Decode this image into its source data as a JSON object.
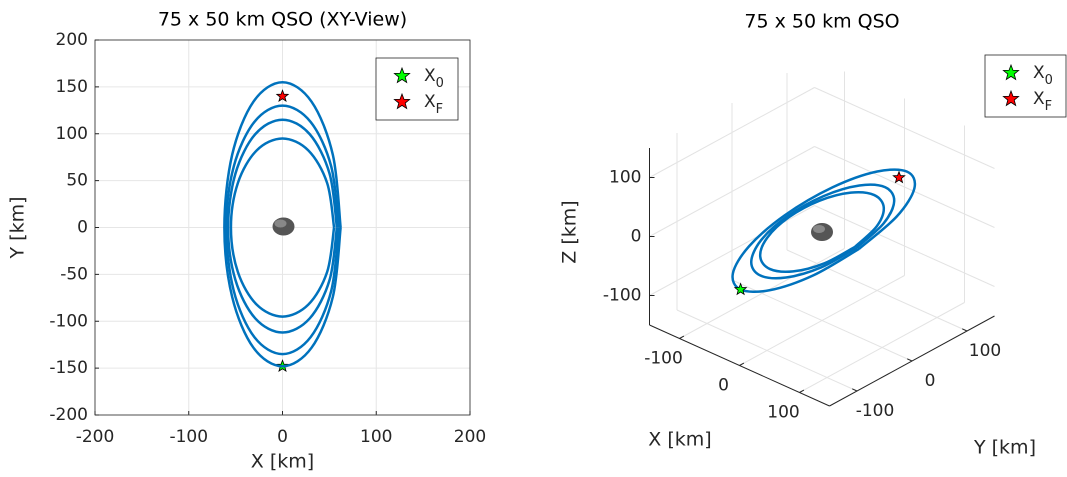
{
  "chart_data": [
    {
      "type": "line",
      "title": "75 x 50 km QSO (XY-View)",
      "xlabel": "X [km]",
      "ylabel": "Y [km]",
      "xlim": [
        -200,
        200
      ],
      "ylim": [
        -200,
        200
      ],
      "xticks": [
        -200,
        -100,
        0,
        100,
        200
      ],
      "yticks": [
        -200,
        -150,
        -100,
        -50,
        0,
        50,
        100,
        150,
        200
      ],
      "grid": true,
      "series": [
        {
          "color": "#0072bd",
          "x": [
            62,
            53.7,
            31,
            0,
            -31,
            -53.7,
            -62,
            -53.7,
            -31,
            0,
            31,
            53.7,
            62
          ],
          "y": [
            0,
            77.5,
            134.2,
            155,
            134.2,
            77.5,
            0,
            -74,
            -128.2,
            -148,
            -128.2,
            -74,
            0
          ]
        },
        {
          "color": "#0072bd",
          "x": [
            60,
            52,
            30,
            0,
            -30,
            -52,
            -60,
            -52,
            -30,
            0,
            30,
            52,
            60
          ],
          "y": [
            0,
            65,
            112.6,
            130,
            112.6,
            65,
            0,
            -67.5,
            -116.9,
            -135,
            -116.9,
            -67.5,
            0
          ]
        },
        {
          "color": "#0072bd",
          "x": [
            58,
            50.2,
            29,
            0,
            -29,
            -50.2,
            -58,
            -50.2,
            -29,
            0,
            29,
            50.2,
            58
          ],
          "y": [
            0,
            57.5,
            99.6,
            115,
            99.6,
            57.5,
            0,
            -56,
            -97,
            -112,
            -97,
            -56,
            0
          ]
        },
        {
          "color": "#0072bd",
          "x": [
            55,
            47.6,
            27.5,
            0,
            -27.5,
            -47.6,
            -55,
            -47.6,
            -27.5,
            0,
            27.5,
            47.6,
            55
          ],
          "y": [
            0,
            47.5,
            82.3,
            95,
            82.3,
            47.5,
            0,
            -47.5,
            -82.3,
            -95,
            -82.3,
            -47.5,
            0
          ]
        }
      ],
      "markers": [
        {
          "name": "X",
          "subscript": "0",
          "color": "#00ff00",
          "x": [
            0
          ],
          "y": [
            -148
          ]
        },
        {
          "name": "X",
          "subscript": "F",
          "color": "#ff0000",
          "x": [
            0
          ],
          "y": [
            140
          ]
        }
      ]
    },
    {
      "type": "line3d",
      "title": "75 x 50 km QSO",
      "xlabel": "X [km]",
      "ylabel": "Y [km]",
      "zlabel": "Z [km]",
      "xlim": [
        -150,
        150
      ],
      "ylim": [
        -150,
        150
      ],
      "zlim": [
        -150,
        150
      ],
      "xticks": [
        -100,
        0,
        100
      ],
      "yticks": [
        -100,
        0,
        100
      ],
      "zticks": [
        -100,
        0,
        100
      ],
      "grid": true,
      "series": [
        {
          "color": "#0072bd",
          "x": [
            62,
            53.7,
            31,
            0,
            -31,
            -53.7,
            -62,
            -53.7,
            -31,
            0,
            31,
            53.7,
            62
          ],
          "y": [
            0,
            77.5,
            134.2,
            155,
            134.2,
            77.5,
            0,
            -74,
            -128.2,
            -148,
            -128.2,
            -74,
            0
          ],
          "z": [
            0,
            11.6,
            20.1,
            23.3,
            20.1,
            11.6,
            0,
            -11.1,
            -19.2,
            -22.2,
            -19.2,
            -11.1,
            0
          ]
        },
        {
          "color": "#0072bd",
          "x": [
            58,
            50.2,
            29,
            0,
            -29,
            -50.2,
            -58,
            -50.2,
            -29,
            0,
            29,
            50.2,
            58
          ],
          "y": [
            0,
            57.5,
            99.6,
            115,
            99.6,
            57.5,
            0,
            -56,
            -97,
            -112,
            -97,
            -56,
            0
          ],
          "z": [
            0,
            8.6,
            14.9,
            17.3,
            14.9,
            8.6,
            0,
            -8.4,
            -14.6,
            -16.8,
            -14.6,
            -8.4,
            0
          ]
        },
        {
          "color": "#0072bd",
          "x": [
            55,
            47.6,
            27.5,
            0,
            -27.5,
            -47.6,
            -55,
            -47.6,
            -27.5,
            0,
            27.5,
            47.6,
            55
          ],
          "y": [
            0,
            47.5,
            82.3,
            95,
            82.3,
            47.5,
            0,
            -47.5,
            -82.3,
            -95,
            -82.3,
            -47.5,
            0
          ],
          "z": [
            0,
            7.1,
            12.3,
            14.3,
            12.3,
            7.1,
            0,
            -7.1,
            -12.3,
            -14.3,
            -12.3,
            -7.1,
            0
          ]
        }
      ],
      "markers": [
        {
          "name": "X",
          "subscript": "0",
          "color": "#00ff00",
          "x": [
            0
          ],
          "y": [
            -148
          ],
          "z": [
            -22.2
          ]
        },
        {
          "name": "X",
          "subscript": "F",
          "color": "#ff0000",
          "x": [
            0
          ],
          "y": [
            140
          ],
          "z": [
            21
          ]
        }
      ]
    }
  ]
}
